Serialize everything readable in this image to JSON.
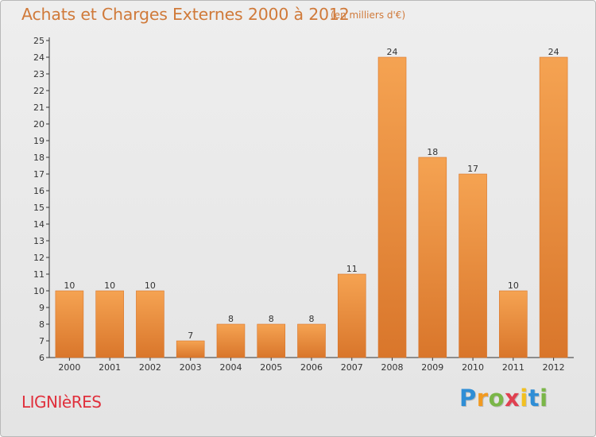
{
  "title": "Achats et Charges Externes 2000 à 2012",
  "subtitle": "(en milliers d'€)",
  "location": "LIGNIèRES",
  "brand": {
    "letters": [
      {
        "ch": "P",
        "color": "#2f8ed6"
      },
      {
        "ch": "r",
        "color": "#f29a20"
      },
      {
        "ch": "o",
        "color": "#7ab648"
      },
      {
        "ch": "x",
        "color": "#e04050"
      },
      {
        "ch": "i",
        "color": "#f2c020"
      },
      {
        "ch": "t",
        "color": "#2f8ed6"
      },
      {
        "ch": "i",
        "color": "#7ab648"
      }
    ]
  },
  "colors": {
    "title": "#d07a3a",
    "bar_light": "#f5a352",
    "bar_dark": "#d9762b",
    "location": "#e0303c"
  },
  "chart_data": {
    "type": "bar",
    "title": "Achats et Charges Externes 2000 à 2012",
    "subtitle": "(en milliers d'€)",
    "categories": [
      "2000",
      "2001",
      "2002",
      "2003",
      "2004",
      "2005",
      "2006",
      "2007",
      "2008",
      "2009",
      "2010",
      "2011",
      "2012"
    ],
    "values": [
      10,
      10,
      10,
      7,
      8,
      8,
      8,
      11,
      24,
      18,
      17,
      10,
      24
    ],
    "ylim": [
      6,
      25
    ],
    "yticks": [
      6,
      7,
      8,
      9,
      10,
      11,
      12,
      13,
      14,
      15,
      16,
      17,
      18,
      19,
      20,
      21,
      22,
      23,
      24,
      25
    ],
    "grid": false,
    "data_labels": true
  }
}
